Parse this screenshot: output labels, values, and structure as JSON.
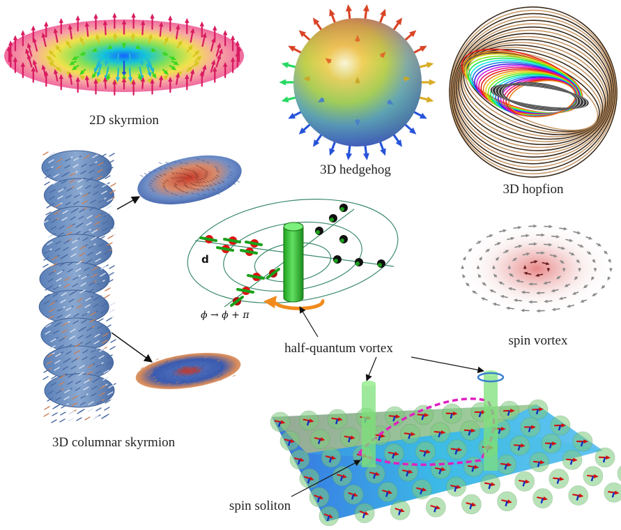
{
  "labels": {
    "skyrmion_2d": "2D skyrmion",
    "hedgehog_3d": "3D hedgehog",
    "hopfion_3d": "3D hopfion",
    "columnar_skyrmion": "3D columnar skyrmion",
    "spin_vortex": "spin vortex",
    "half_quantum_vortex": "half-quantum vortex",
    "spin_soliton": "spin soliton",
    "d_vector": "d",
    "phase_shift": "ϕ → ϕ + π"
  },
  "colors": {
    "skyrmion_arrow": "#d81b60",
    "vortex_core": "#3fcf3f",
    "rotation_arrow": "#f08a1c",
    "soliton_line": "#e020c0",
    "dvector_red": "#e01010",
    "ring_line": "#3a8a6a"
  },
  "icons": [
    "arrow-icon"
  ]
}
